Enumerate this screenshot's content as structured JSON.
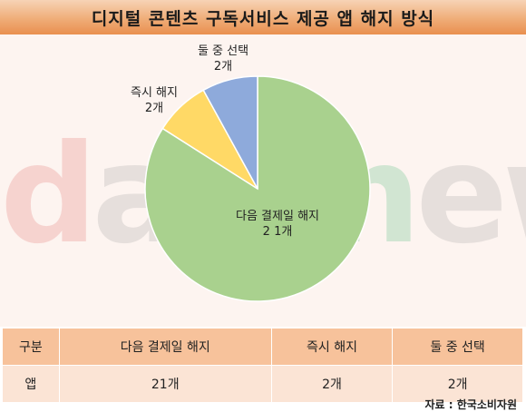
{
  "title": "디지털 콘텐츠 구독서비스 제공 앱 해지 방식",
  "watermark": "datanews",
  "chart_data": {
    "type": "pie",
    "slices": [
      {
        "name": "다음 결제일 해지",
        "label": "2 1개",
        "value": 21,
        "color": "#a9d18e"
      },
      {
        "name": "즉시 해지",
        "label": "2개",
        "value": 2,
        "color": "#ffd966"
      },
      {
        "name": "둘 중 선택",
        "label": "2개",
        "value": 2,
        "color": "#8eaadb"
      }
    ]
  },
  "table": {
    "header": [
      "구분",
      "다음 결제일 해지",
      "즉시 해지",
      "둘 중 선택"
    ],
    "row": [
      "앱",
      "21개",
      "2개",
      "2개"
    ]
  },
  "source": "자료 : 한국소비자원"
}
